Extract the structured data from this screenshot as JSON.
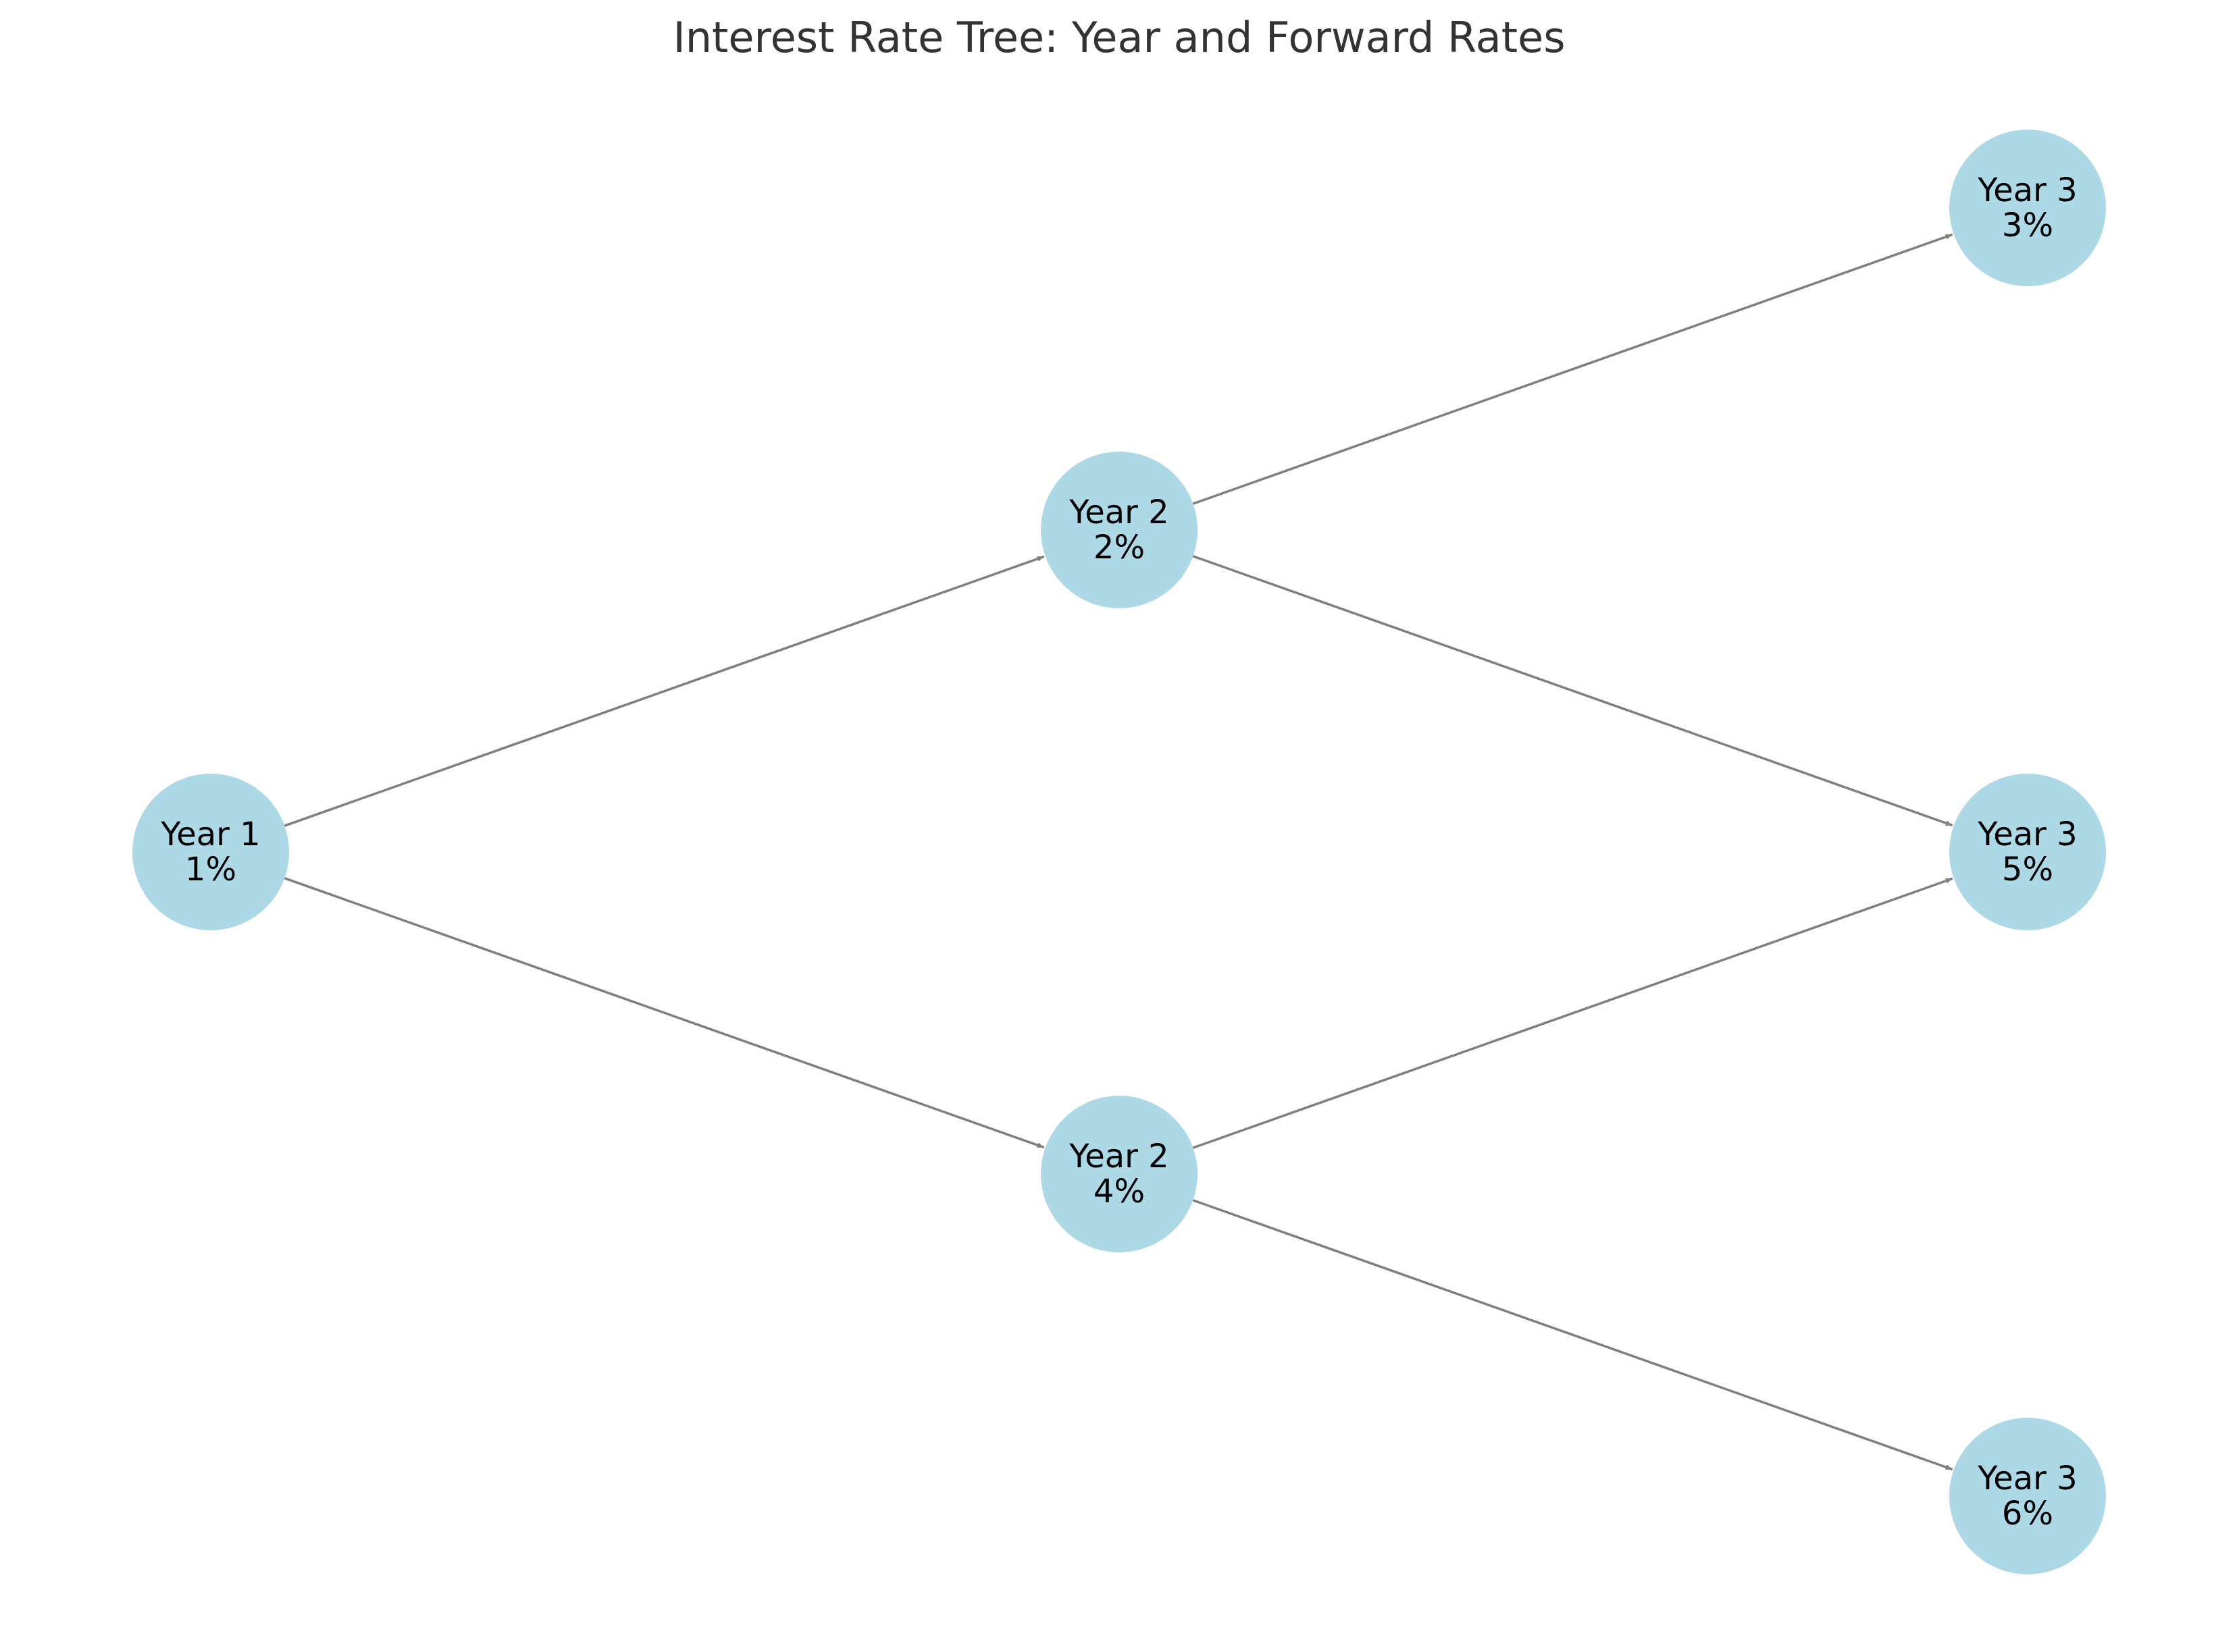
{
  "title": "Interest Rate Tree: Year and Forward Rates",
  "colors": {
    "node_fill": "#add8e6",
    "edge": "#7f7f7f",
    "title": "#333333",
    "label": "#000000"
  },
  "nodes": [
    {
      "id": "y1",
      "year": "Year 1",
      "rate": "1%"
    },
    {
      "id": "y2a",
      "year": "Year 2",
      "rate": "2%"
    },
    {
      "id": "y2b",
      "year": "Year 2",
      "rate": "4%"
    },
    {
      "id": "y3a",
      "year": "Year 3",
      "rate": "3%"
    },
    {
      "id": "y3b",
      "year": "Year 3",
      "rate": "5%"
    },
    {
      "id": "y3c",
      "year": "Year 3",
      "rate": "6%"
    }
  ],
  "edges": [
    {
      "from": "y1",
      "to": "y2a"
    },
    {
      "from": "y1",
      "to": "y2b"
    },
    {
      "from": "y2a",
      "to": "y3a"
    },
    {
      "from": "y2a",
      "to": "y3b"
    },
    {
      "from": "y2b",
      "to": "y3b"
    },
    {
      "from": "y2b",
      "to": "y3c"
    }
  ]
}
